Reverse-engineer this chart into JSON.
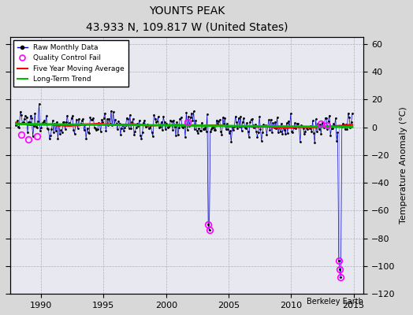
{
  "title": "YOUNTS PEAK",
  "subtitle": "43.933 N, 109.817 W (United States)",
  "ylabel": "Temperature Anomaly (°C)",
  "xlabel_note": "Berkeley Earth",
  "xlim": [
    1987.5,
    2015.8
  ],
  "ylim": [
    -120,
    65
  ],
  "yticks": [
    -120,
    -100,
    -80,
    -60,
    -40,
    -20,
    0,
    20,
    40,
    60
  ],
  "xticks": [
    1990,
    1995,
    2000,
    2005,
    2010,
    2015
  ],
  "background_color": "#d8d8d8",
  "plot_bg_color": "#e8e8f0",
  "raw_color": "#0000cc",
  "raw_dot_color": "#000000",
  "qc_color": "#ff00ff",
  "moving_avg_color": "#ff0000",
  "trend_color": "#00bb00",
  "spike_line_color": "#aaaaff",
  "spike1_x": 2003.5,
  "spike1_y_bot1": -70.0,
  "spike1_y_bot2": -74.0,
  "spike2_x": 2013.9,
  "spike2_y_bot1": -96.0,
  "spike2_y_bot2": -102.0,
  "spike2_y_bot3": -108.0,
  "x_start": 1988.0,
  "x_end": 2014.9,
  "noise_std": 4.5,
  "noise_mean": 1.5
}
